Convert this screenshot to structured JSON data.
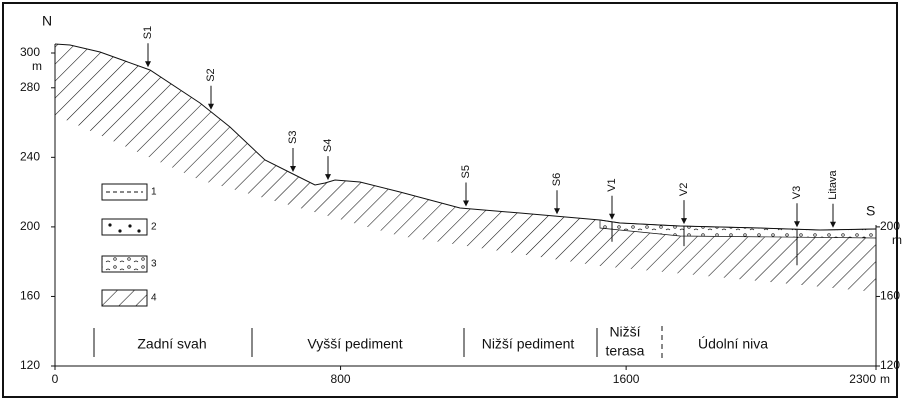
{
  "left_axis": {
    "label": "N",
    "unit": "m",
    "ticks": [
      120,
      160,
      200,
      240,
      280,
      300
    ]
  },
  "right_axis": {
    "label": "S",
    "unit": "m",
    "ticks": [
      120,
      160,
      200
    ]
  },
  "x_axis": {
    "unit": "m",
    "ticks": [
      0,
      800,
      1600,
      2300
    ]
  },
  "sites": [
    "S1",
    "S2",
    "S3",
    "S4",
    "S5",
    "S6",
    "V1",
    "V2",
    "V3",
    "Litava"
  ],
  "zones": [
    [
      "Zadní svah"
    ],
    [
      "Vyšší pediment"
    ],
    [
      "Nižší pediment"
    ],
    [
      "Nižší",
      "terasa"
    ],
    [
      "Údolní niva"
    ]
  ],
  "legend": [
    "1",
    "2",
    "3",
    "4"
  ]
}
